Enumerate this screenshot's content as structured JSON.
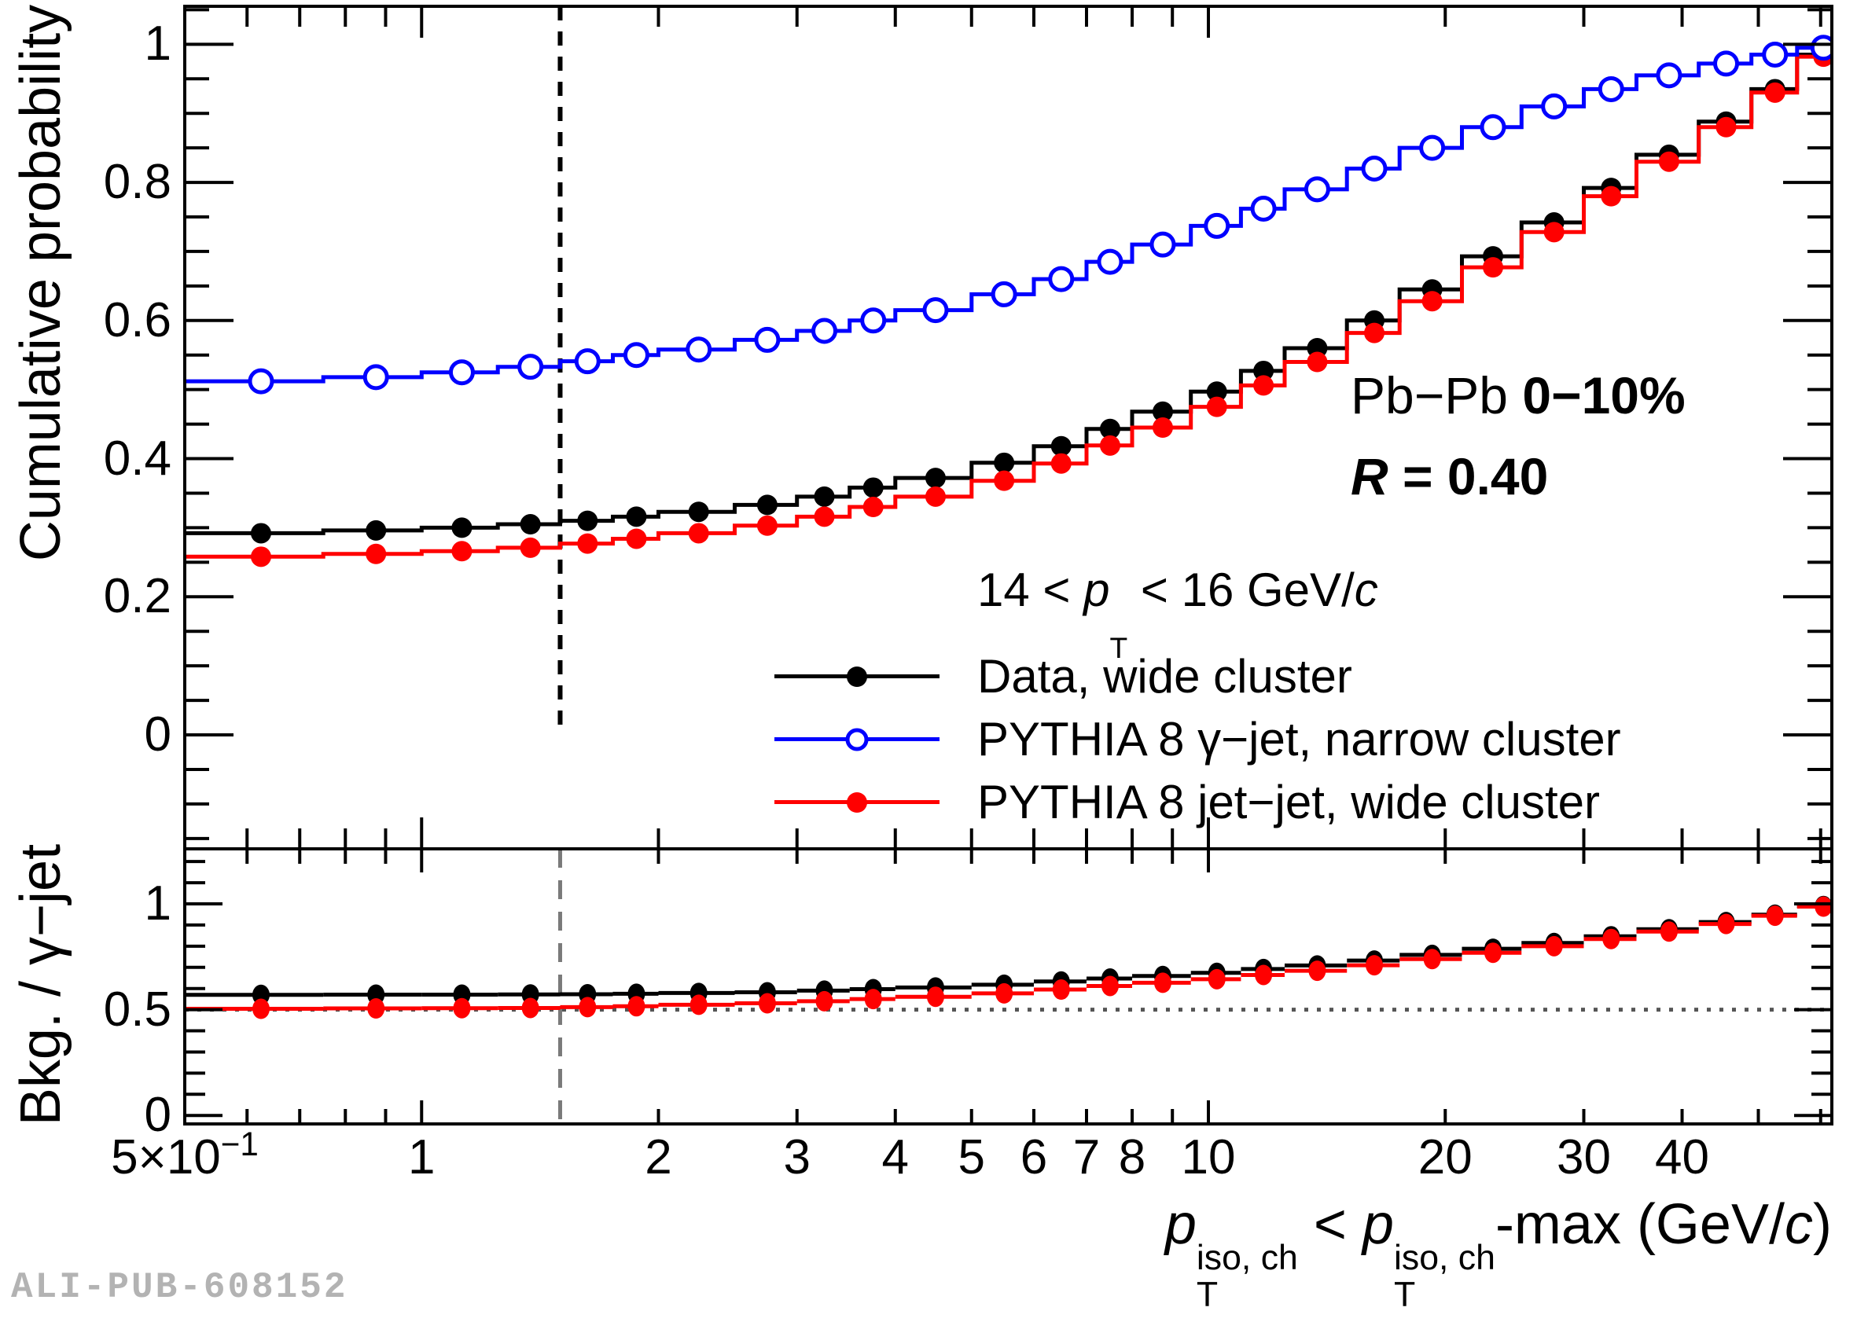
{
  "colors": {
    "data_series": "#000000",
    "gamma_jet_series": "#0000ff",
    "jet_jet_series": "#ff0000",
    "ratio_guide_line": "#555555",
    "ratio_vline": "#7a7a7a",
    "watermark": "#b3b3b3",
    "background": "#ffffff"
  },
  "main_axis": {
    "title": "Cumulative probability",
    "labels": [
      {
        "v": 1,
        "t": "1"
      },
      {
        "v": 0.8,
        "t": "0.8"
      },
      {
        "v": 0.6,
        "t": "0.6"
      },
      {
        "v": 0.4,
        "t": "0.4"
      },
      {
        "v": 0.2,
        "t": "0.2"
      },
      {
        "v": 0,
        "t": "0"
      }
    ],
    "major": [
      0,
      0.2,
      0.4,
      0.6,
      0.8,
      1.0
    ],
    "minor_step": 0.05,
    "range": [
      -0.165,
      1.055
    ]
  },
  "ratio_axis": {
    "title_segs": [
      {
        "t": "Bkg. / "
      },
      {
        "t": "γ"
      },
      {
        "t": "−jet"
      }
    ],
    "labels": [
      {
        "v": 1,
        "t": "1"
      },
      {
        "v": 0.5,
        "t": "0.5"
      },
      {
        "v": 0,
        "t": "0"
      }
    ],
    "major": [
      0,
      0.5,
      1.0
    ],
    "minor_step": 0.1,
    "range": [
      -0.04,
      1.26
    ]
  },
  "x_axis": {
    "title_segs": [
      {
        "t": "p",
        "i": true,
        "stack": {
          "sup": "iso, ch",
          "sub": "T"
        }
      },
      {
        "t": " < "
      },
      {
        "t": "p",
        "i": true,
        "stack": {
          "sup": "iso, ch",
          "sub": "T"
        }
      },
      {
        "t": "-max (GeV/"
      },
      {
        "t": "c",
        "i": true
      },
      {
        "t": ")"
      }
    ],
    "tick_values": [
      0.5,
      0.6,
      0.7,
      0.8,
      0.9,
      1,
      2,
      3,
      4,
      5,
      6,
      7,
      8,
      9,
      10,
      20,
      30,
      40,
      50,
      60
    ],
    "decade_values": [
      1,
      10
    ],
    "labels": [
      {
        "v": 0.5,
        "segs": [
          {
            "t": "5×10"
          },
          {
            "t": "−1",
            "sup": true
          }
        ]
      },
      {
        "v": 1,
        "t": "1"
      },
      {
        "v": 2,
        "t": "2"
      },
      {
        "v": 3,
        "t": "3"
      },
      {
        "v": 4,
        "t": "4"
      },
      {
        "v": 5,
        "t": "5"
      },
      {
        "v": 6,
        "t": "6"
      },
      {
        "v": 7,
        "t": "7"
      },
      {
        "v": 8,
        "t": "8"
      },
      {
        "v": 10,
        "t": "10"
      },
      {
        "v": 20,
        "t": "20"
      },
      {
        "v": 30,
        "t": "30"
      },
      {
        "v": 40,
        "t": "40"
      }
    ],
    "range": [
      0.5,
      62
    ],
    "scale": "log"
  },
  "legend": {
    "header_segs": [
      {
        "t": "14 < "
      },
      {
        "t": "p",
        "i": true,
        "stack": {
          "sup": "",
          "sub": "T"
        }
      },
      {
        "t": " < 16 GeV/"
      },
      {
        "t": "c",
        "i": true
      }
    ],
    "items": [
      {
        "label_segs": [
          {
            "t": "Data, wide cluster"
          }
        ],
        "color": "#000000",
        "marker": "filled"
      },
      {
        "label_segs": [
          {
            "t": "PYTHIA 8 "
          },
          {
            "t": "γ"
          },
          {
            "t": "−jet, narrow cluster"
          }
        ],
        "color": "#0000ff",
        "marker": "open"
      },
      {
        "label_segs": [
          {
            "t": "PYTHIA 8 jet−jet, wide cluster"
          }
        ],
        "color": "#ff0000",
        "marker": "filled"
      }
    ]
  },
  "annotations": {
    "system_segs": [
      {
        "t": "Pb−Pb "
      },
      {
        "t": "0−10%",
        "b": true
      }
    ],
    "radius_segs": [
      {
        "t": "R",
        "b": true,
        "i": true
      },
      {
        "t": " = 0.40",
        "b": true
      }
    ]
  },
  "watermark": "ALI-PUB-608152",
  "chart_data": {
    "type": "line",
    "subtype": "step-histogram-cumulative",
    "x_scale": "log",
    "xlim": [
      0.5,
      62
    ],
    "main_ylim": [
      -0.165,
      1.055
    ],
    "ratio_ylim": [
      -0.04,
      1.26
    ],
    "xlabel": "pT_iso_ch < pT_iso_ch-max (GeV/c)",
    "ylabel_main": "Cumulative probability",
    "ylabel_ratio": "Bkg. / gamma-jet",
    "legend_position": "center-right",
    "grid": false,
    "vline_x": 1.5,
    "ratio_hline_y": 0.5,
    "bin_edges": [
      0.5,
      0.75,
      1,
      1.25,
      1.5,
      1.75,
      2,
      2.5,
      3,
      3.5,
      4,
      5,
      6,
      7,
      8,
      9.5,
      11,
      12.5,
      15,
      17.5,
      21,
      25,
      30,
      35,
      42,
      49,
      56,
      65
    ],
    "x": [
      0.625,
      0.875,
      1.125,
      1.375,
      1.625,
      1.875,
      2.25,
      2.75,
      3.25,
      3.75,
      4.5,
      5.5,
      6.5,
      7.5,
      8.75,
      10.25,
      11.75,
      13.75,
      16.25,
      19.25,
      23,
      27.5,
      32.5,
      38.5,
      45.5,
      52.5,
      60.5
    ],
    "series": [
      {
        "name": "Data, wide cluster",
        "color": "#000000",
        "marker": "filled-circle",
        "values": [
          0.292,
          0.296,
          0.3,
          0.305,
          0.31,
          0.316,
          0.323,
          0.333,
          0.345,
          0.358,
          0.372,
          0.394,
          0.418,
          0.443,
          0.468,
          0.497,
          0.527,
          0.56,
          0.6,
          0.645,
          0.693,
          0.742,
          0.792,
          0.84,
          0.888,
          0.935,
          0.985
        ]
      },
      {
        "name": "PYTHIA 8 γ–jet, narrow cluster",
        "color": "#0000ff",
        "marker": "open-circle",
        "values": [
          0.512,
          0.518,
          0.525,
          0.533,
          0.541,
          0.55,
          0.558,
          0.572,
          0.585,
          0.6,
          0.615,
          0.638,
          0.66,
          0.685,
          0.71,
          0.737,
          0.762,
          0.79,
          0.82,
          0.85,
          0.88,
          0.91,
          0.935,
          0.955,
          0.972,
          0.985,
          0.995
        ]
      },
      {
        "name": "PYTHIA 8 jet–jet, wide cluster",
        "color": "#ff0000",
        "marker": "filled-circle",
        "values": [
          0.258,
          0.262,
          0.266,
          0.271,
          0.277,
          0.284,
          0.292,
          0.303,
          0.316,
          0.33,
          0.345,
          0.368,
          0.393,
          0.419,
          0.445,
          0.475,
          0.506,
          0.54,
          0.582,
          0.628,
          0.677,
          0.728,
          0.78,
          0.83,
          0.88,
          0.93,
          0.982
        ]
      }
    ],
    "ratio_series": [
      {
        "name": "Data / γ-jet",
        "color": "#000000",
        "values": [
          0.57,
          0.571,
          0.571,
          0.572,
          0.573,
          0.575,
          0.579,
          0.582,
          0.59,
          0.597,
          0.605,
          0.618,
          0.633,
          0.647,
          0.659,
          0.674,
          0.692,
          0.709,
          0.732,
          0.759,
          0.788,
          0.815,
          0.847,
          0.88,
          0.914,
          0.949,
          0.99
        ]
      },
      {
        "name": "jet-jet / γ-jet",
        "color": "#ff0000",
        "values": [
          0.504,
          0.506,
          0.507,
          0.508,
          0.512,
          0.516,
          0.523,
          0.53,
          0.54,
          0.55,
          0.561,
          0.577,
          0.595,
          0.612,
          0.627,
          0.644,
          0.664,
          0.684,
          0.71,
          0.739,
          0.769,
          0.8,
          0.834,
          0.869,
          0.905,
          0.944,
          0.987
        ]
      }
    ]
  }
}
